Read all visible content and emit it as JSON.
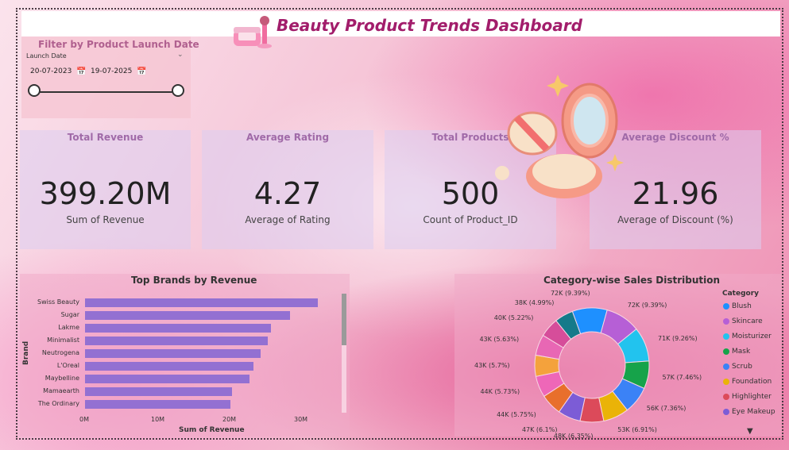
{
  "header": {
    "title": "Beauty Product Trends Dashboard",
    "icon": "makeup-products-icon"
  },
  "slicer": {
    "title": "Filter by Product Launch Date",
    "field_label": "Launch Date",
    "start_date": "20-07-2023",
    "end_date": "19-07-2025"
  },
  "cards": [
    {
      "title": "Total Revenue",
      "value": "399.20M",
      "sub": "Sum of Revenue"
    },
    {
      "title": "Average Rating",
      "value": "4.27",
      "sub": "Average of Rating"
    },
    {
      "title": "Total Products",
      "value": "500",
      "sub": "Count of Product_ID"
    },
    {
      "title": "Average Discount %",
      "value": "21.96",
      "sub": "Average of Discount (%)"
    }
  ],
  "colors": {
    "bar": "#9370d2",
    "title": "#a21d6b",
    "categories": [
      "#1e90ff",
      "#b65fd6",
      "#22c3ee",
      "#16a34a",
      "#3b82f6",
      "#eab308",
      "#dc4a5a",
      "#7c5cd6",
      "#e86f2c",
      "#ee67b8",
      "#f4a23c",
      "#e867b4",
      "#d64d9a",
      "#157a8a",
      "#173d9e",
      "#7a127a"
    ]
  },
  "chart_data": [
    {
      "type": "bar",
      "title": "Top Brands by Revenue",
      "xlabel": "Sum of Revenue",
      "ylabel": "Brand",
      "categories": [
        "Swiss Beauty",
        "Sugar",
        "Lakme",
        "Minimalist",
        "Neutrogena",
        "L'Oreal",
        "Maybelline",
        "Mamaearth",
        "The Ordinary"
      ],
      "values": [
        32.5,
        28.7,
        26.0,
        25.6,
        24.5,
        23.6,
        23.0,
        20.5,
        20.3
      ],
      "xticks": [
        "0M",
        "10M",
        "20M",
        "30M"
      ],
      "xlim": [
        0,
        40
      ],
      "grid": false
    },
    {
      "type": "pie",
      "title": "Category-wise Sales Distribution",
      "legend_title": "Category",
      "legend": [
        "Blush",
        "Skincare",
        "Moisturizer",
        "Mask",
        "Scrub",
        "Foundation",
        "Highlighter",
        "Eye Makeup"
      ],
      "slice_labels": [
        "72K (9.39%)",
        "72K (9.39%)",
        "71K (9.26%)",
        "57K (7.46%)",
        "56K (7.36%)",
        "53K (6.91%)",
        "48K (6.35%)",
        "47K (6.1%)",
        "44K (5.75%)",
        "44K (5.73%)",
        "43K (5.7%)",
        "43K (5.63%)",
        "40K (5.22%)",
        "38K (4.99%)"
      ],
      "values": [
        9.39,
        9.39,
        9.26,
        7.46,
        7.36,
        6.91,
        6.35,
        6.1,
        5.75,
        5.73,
        5.7,
        5.63,
        5.22,
        4.99
      ]
    }
  ]
}
